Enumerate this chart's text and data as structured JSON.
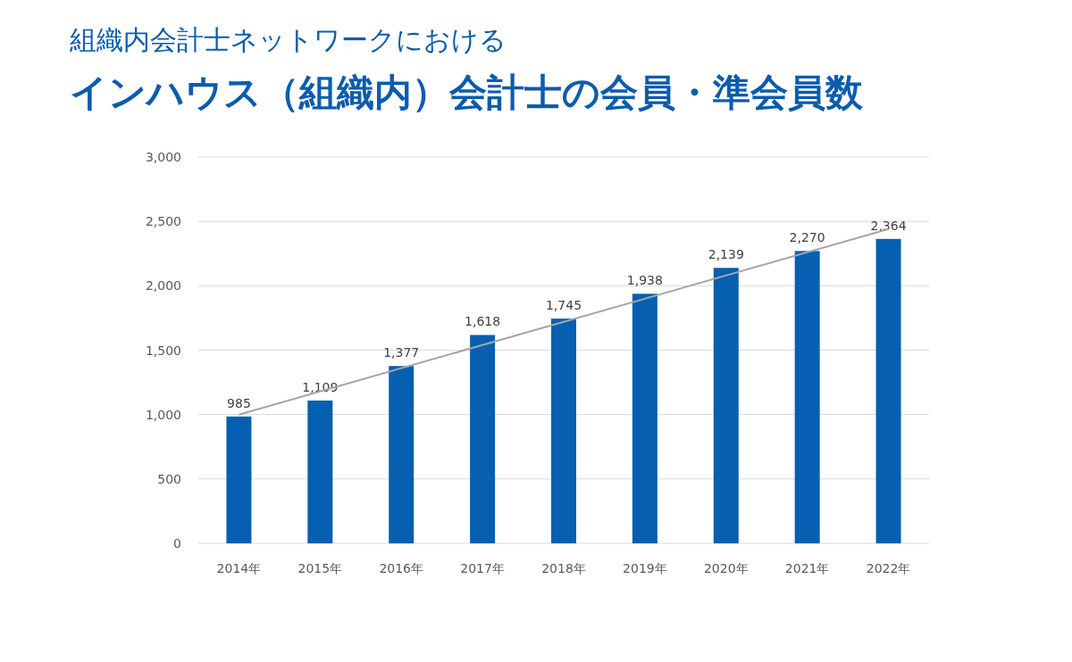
{
  "chart_data": {
    "type": "bar",
    "title": "組織内会計士ネットワークにおける",
    "subtitle": "インハウス（組織内）会計士の会員・準会員数",
    "categories": [
      "2014年",
      "2015年",
      "2016年",
      "2017年",
      "2018年",
      "2019年",
      "2020年",
      "2021年",
      "2022年"
    ],
    "series": [
      {
        "type": "bar",
        "color": "#065fb0",
        "values": [
          985,
          1109,
          1377,
          1618,
          1745,
          1938,
          2139,
          2270,
          2364
        ],
        "value_labels": [
          "985",
          "1,109",
          "1,377",
          "1,618",
          "1,745",
          "1,938",
          "2,139",
          "2,270",
          "2,364"
        ]
      },
      {
        "type": "line",
        "color": "#a6a6a6",
        "x": [
          "2014年",
          "2022年"
        ],
        "values": [
          1000,
          2440
        ]
      }
    ],
    "ylim": [
      0,
      3000
    ],
    "yticks": [
      0,
      500,
      {
        "value": 1000,
        "label": "1,000"
      },
      {
        "value": 1500,
        "label": "1,500"
      },
      {
        "value": 2000,
        "label": "2,000"
      },
      {
        "value": 2500,
        "label": "2,500"
      },
      {
        "value": 3000,
        "label": "3,000"
      }
    ],
    "grid": "y"
  }
}
